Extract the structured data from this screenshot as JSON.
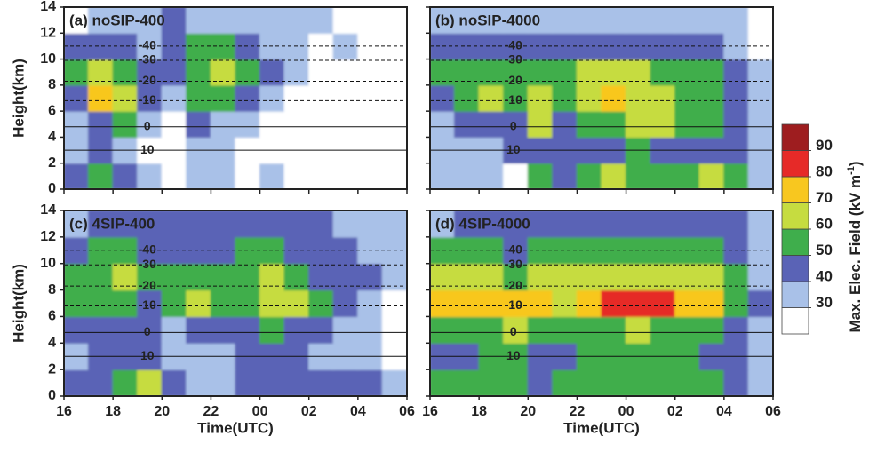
{
  "chart_data": {
    "type": "contour",
    "xlabel": "Time(UTC)",
    "ylabel": "Height(km)",
    "xlim": [
      16,
      30
    ],
    "ylim": [
      0,
      14
    ],
    "xticks": [
      16,
      18,
      20,
      22,
      {
        "value": 24,
        "label": "00"
      },
      {
        "value": 26,
        "label": "02"
      },
      {
        "value": 28,
        "label": "04"
      },
      {
        "value": 30,
        "label": "06"
      }
    ],
    "yticks": [
      0,
      2,
      4,
      6,
      8,
      10,
      12,
      14
    ],
    "x": [
      16.5,
      17.5,
      18.5,
      19.5,
      20.5,
      21.5,
      22.5,
      23.5,
      24.5,
      25.5,
      26.5,
      27.5,
      28.5,
      29.5
    ],
    "y": [
      1,
      3,
      5,
      7,
      9,
      11,
      13
    ],
    "levels": [
      30,
      40,
      50,
      60,
      70,
      80,
      90
    ],
    "colors": [
      "#ffffff",
      "#a9c1e8",
      "#5a63b6",
      "#3fae4c",
      "#c6dc40",
      "#f8c71f",
      "#e62a28",
      "#9e1d1f"
    ],
    "colorbar_label": [
      "Max. Elec. Field (kV m",
      "-1",
      ")"
    ],
    "isotherms": [
      {
        "temp": -40,
        "height": 11.0,
        "style": "dashed"
      },
      {
        "temp": -30,
        "height": 9.9,
        "style": "dashed"
      },
      {
        "temp": -20,
        "height": 8.3,
        "style": "dashed"
      },
      {
        "temp": -10,
        "height": 6.8,
        "style": "dashed"
      },
      {
        "temp": 0,
        "height": 4.8,
        "style": "solid"
      },
      {
        "temp": 10,
        "height": 3.0,
        "style": "solid"
      }
    ],
    "panels": [
      {
        "title": "(a)  noSIP-400",
        "z": [
          [
            45,
            52,
            42,
            35,
            20,
            35,
            32,
            20,
            32,
            20,
            20,
            20,
            20,
            20
          ],
          [
            35,
            42,
            38,
            20,
            20,
            32,
            35,
            20,
            20,
            20,
            20,
            20,
            20,
            20
          ],
          [
            35,
            45,
            52,
            35,
            20,
            42,
            38,
            32,
            20,
            20,
            20,
            20,
            20,
            20
          ],
          [
            45,
            72,
            62,
            42,
            35,
            55,
            55,
            45,
            35,
            20,
            20,
            20,
            20,
            20
          ],
          [
            55,
            65,
            55,
            42,
            45,
            58,
            65,
            52,
            45,
            35,
            25,
            20,
            20,
            20
          ],
          [
            42,
            45,
            45,
            35,
            45,
            52,
            55,
            45,
            35,
            35,
            25,
            32,
            20,
            20
          ],
          [
            20,
            35,
            35,
            35,
            45,
            35,
            35,
            35,
            35,
            35,
            35,
            25,
            20,
            20
          ]
        ]
      },
      {
        "title": "(b)  noSIP-4000",
        "z": [
          [
            38,
            35,
            30,
            25,
            50,
            40,
            58,
            60,
            55,
            55,
            58,
            62,
            50,
            35
          ],
          [
            35,
            38,
            38,
            42,
            45,
            40,
            45,
            45,
            50,
            48,
            48,
            45,
            40,
            30
          ],
          [
            35,
            42,
            45,
            45,
            62,
            45,
            55,
            58,
            62,
            62,
            55,
            50,
            45,
            35
          ],
          [
            45,
            55,
            62,
            58,
            65,
            55,
            65,
            70,
            65,
            62,
            58,
            55,
            45,
            35
          ],
          [
            55,
            58,
            58,
            55,
            52,
            55,
            62,
            62,
            60,
            58,
            55,
            52,
            45,
            35
          ],
          [
            45,
            45,
            45,
            42,
            45,
            45,
            45,
            45,
            45,
            45,
            45,
            45,
            38,
            25
          ],
          [
            35,
            35,
            35,
            35,
            35,
            35,
            35,
            35,
            35,
            35,
            35,
            35,
            35,
            20
          ]
        ]
      },
      {
        "title": "(c)  4SIP-400",
        "z": [
          [
            40,
            45,
            55,
            65,
            40,
            38,
            35,
            40,
            45,
            48,
            42,
            45,
            40,
            30
          ],
          [
            35,
            40,
            45,
            40,
            30,
            35,
            38,
            42,
            45,
            42,
            38,
            35,
            30,
            25
          ],
          [
            42,
            45,
            48,
            40,
            35,
            45,
            42,
            48,
            52,
            48,
            42,
            38,
            30,
            25
          ],
          [
            50,
            58,
            52,
            45,
            50,
            60,
            52,
            58,
            60,
            62,
            50,
            45,
            35,
            25
          ],
          [
            52,
            58,
            60,
            55,
            50,
            55,
            55,
            58,
            60,
            55,
            48,
            45,
            40,
            35
          ],
          [
            45,
            50,
            52,
            48,
            45,
            45,
            48,
            50,
            52,
            48,
            42,
            45,
            38,
            35
          ],
          [
            35,
            42,
            45,
            45,
            45,
            45,
            45,
            45,
            45,
            40,
            40,
            35,
            35,
            35
          ]
        ]
      },
      {
        "title": "(d)  4SIP-4000",
        "z": [
          [
            58,
            55,
            55,
            50,
            45,
            50,
            55,
            55,
            52,
            52,
            55,
            55,
            45,
            35
          ],
          [
            45,
            48,
            50,
            52,
            42,
            48,
            52,
            55,
            52,
            50,
            50,
            48,
            40,
            35
          ],
          [
            58,
            55,
            55,
            60,
            52,
            50,
            55,
            58,
            60,
            58,
            55,
            52,
            42,
            35
          ],
          [
            72,
            75,
            72,
            70,
            70,
            68,
            72,
            80,
            80,
            80,
            78,
            72,
            55,
            40
          ],
          [
            62,
            65,
            62,
            58,
            60,
            62,
            65,
            68,
            68,
            65,
            65,
            62,
            50,
            38
          ],
          [
            50,
            52,
            52,
            48,
            50,
            52,
            55,
            55,
            55,
            55,
            55,
            52,
            45,
            35
          ],
          [
            35,
            45,
            45,
            45,
            45,
            45,
            45,
            45,
            45,
            45,
            45,
            45,
            40,
            35
          ]
        ]
      }
    ]
  }
}
